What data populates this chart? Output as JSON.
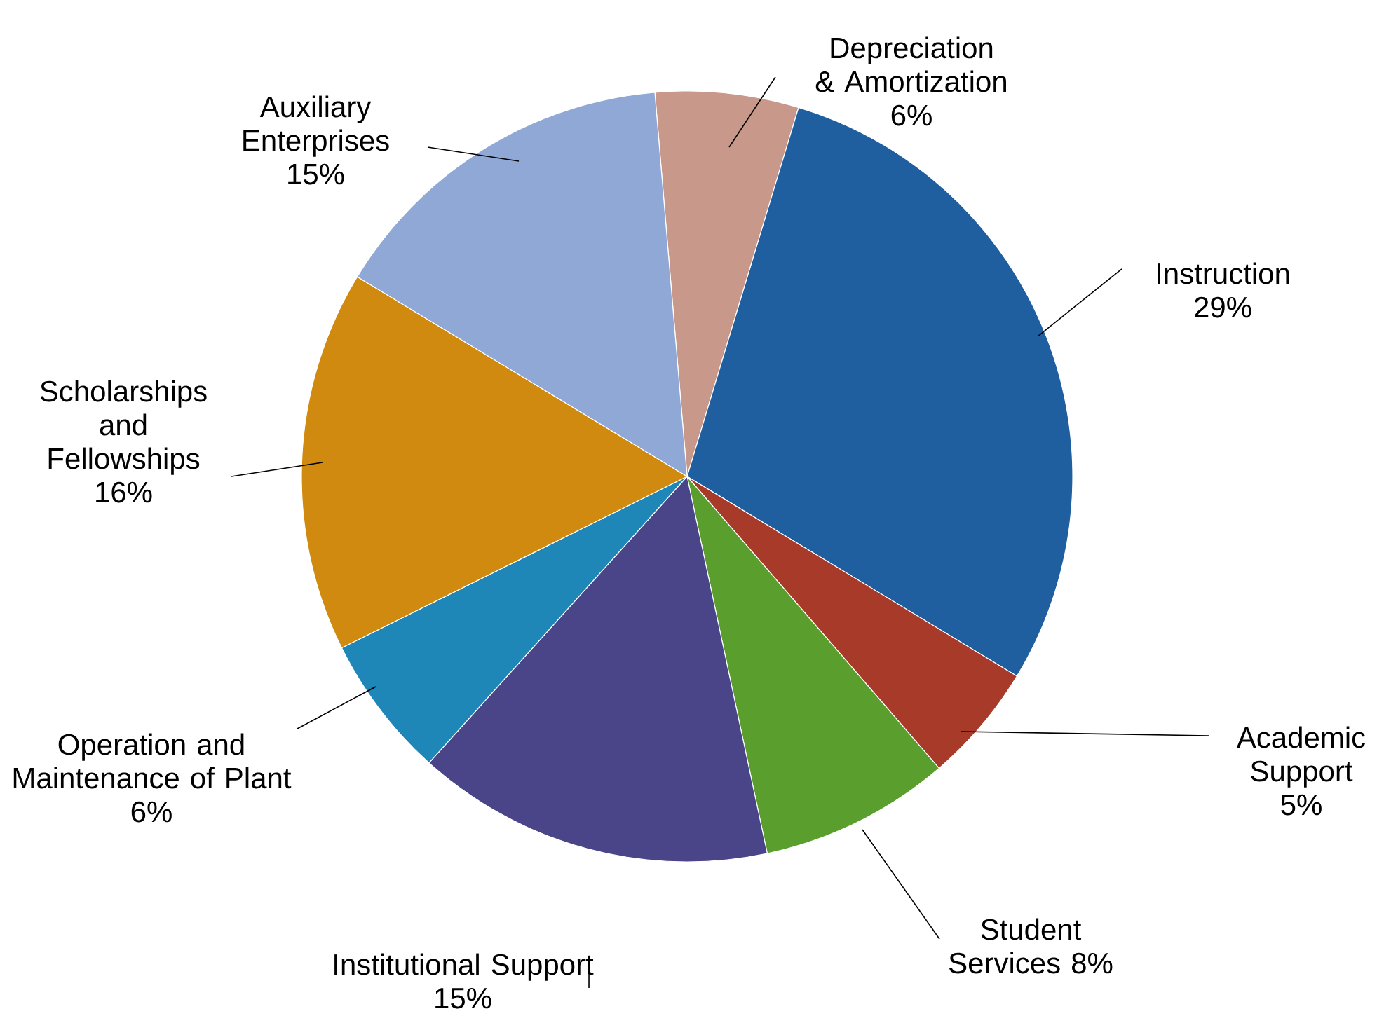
{
  "chart_data": {
    "type": "pie",
    "categories": [
      "Depreciation & Amortization",
      "Instruction",
      "Academic Support",
      "Student Services",
      "Institutional Support",
      "Operation and Maintenance of Plant",
      "Scholarships and Fellowships",
      "Auxiliary Enterprises"
    ],
    "values": [
      6,
      29,
      5,
      8,
      15,
      6,
      16,
      15
    ],
    "value_labels": [
      "6%",
      "29%",
      "5%",
      "8%",
      "15%",
      "6%",
      "16%",
      "15%"
    ],
    "colors": [
      "#c8998a",
      "#1f5fa0",
      "#a83a2a",
      "#5a9e2e",
      "#4a4488",
      "#1f86b8",
      "#d08a10",
      "#8fa8d6"
    ]
  }
}
